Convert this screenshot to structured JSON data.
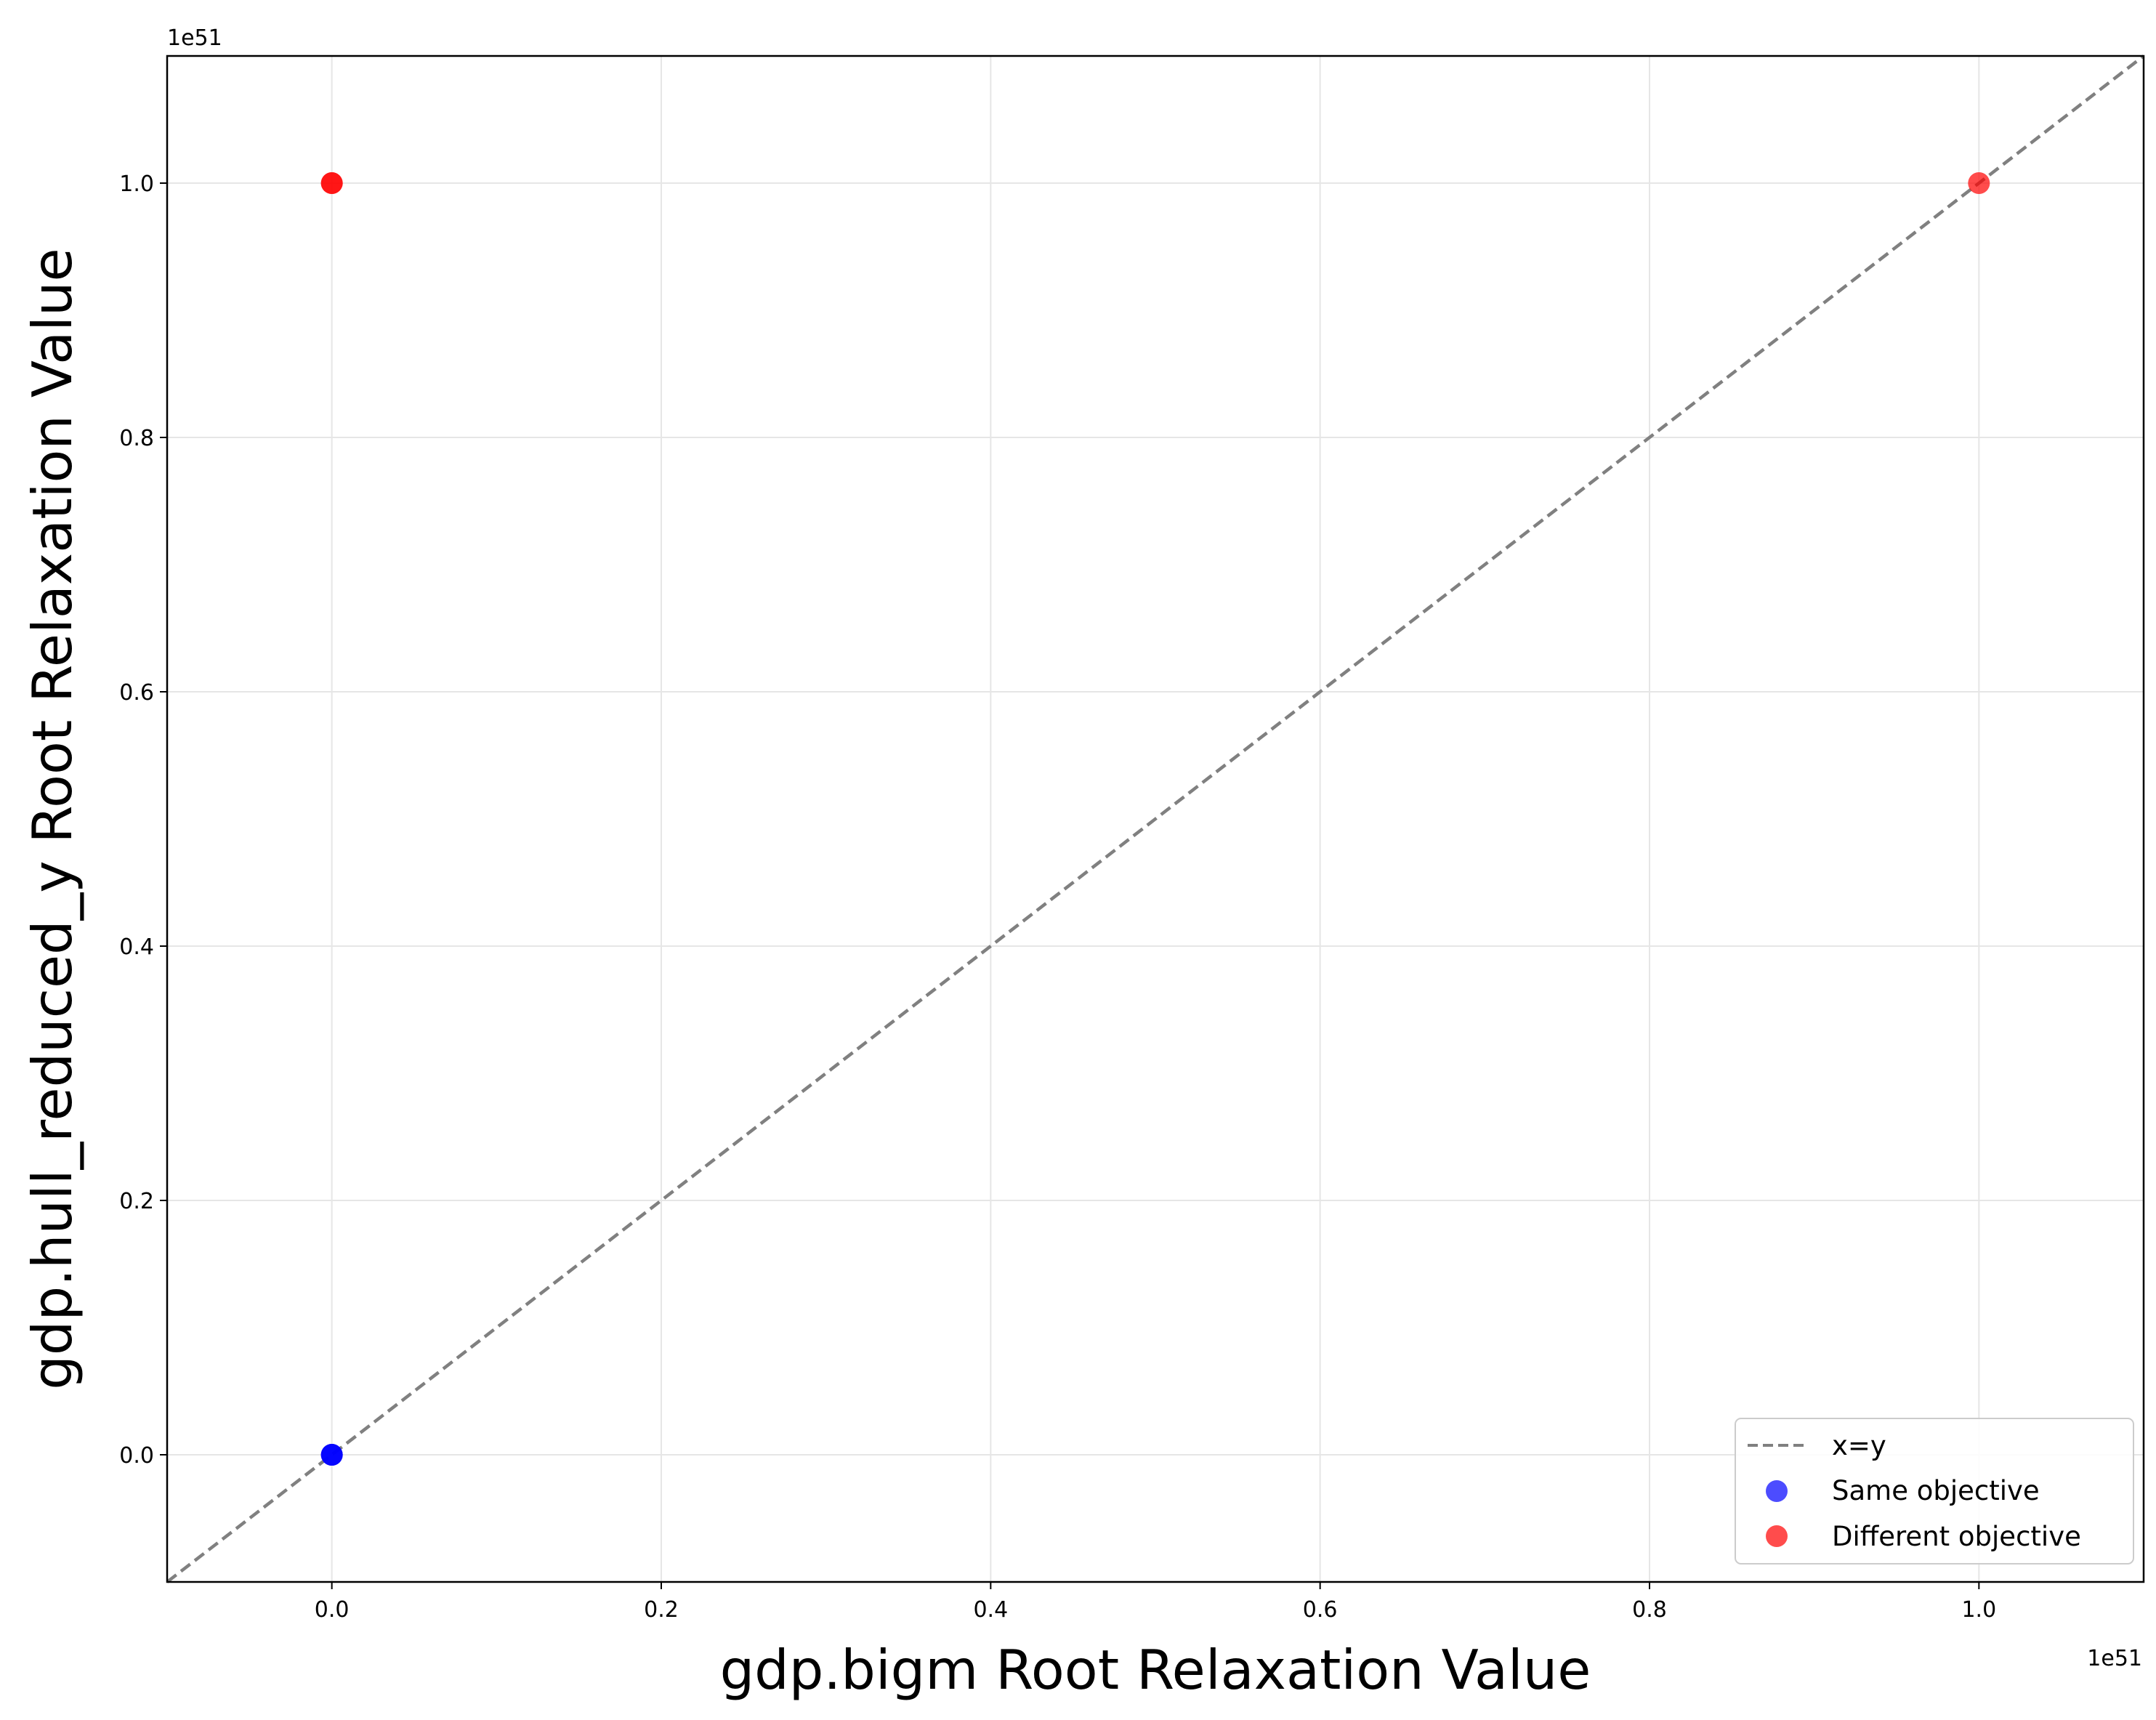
{
  "chart_data": {
    "type": "scatter",
    "xlabel": "gdp.bigm Root Relaxation Value",
    "ylabel": "gdp.hull_reduced_y Root Relaxation Value",
    "x_offset_label": "1e51",
    "y_offset_label": "1e51",
    "xlim": [
      -0.1,
      1.1
    ],
    "ylim": [
      -0.1,
      1.1
    ],
    "x_ticks": [
      0.0,
      0.2,
      0.4,
      0.6,
      0.8,
      1.0
    ],
    "x_tick_labels": [
      "0.0",
      "0.2",
      "0.4",
      "0.6",
      "0.8",
      "1.0"
    ],
    "y_ticks": [
      0.0,
      0.2,
      0.4,
      0.6,
      0.8,
      1.0
    ],
    "y_tick_labels": [
      "0.0",
      "0.2",
      "0.4",
      "0.6",
      "0.8",
      "1.0"
    ],
    "grid": true,
    "legend_position": "bottom-right",
    "series": [
      {
        "name": "x=y",
        "kind": "line",
        "style": "dashed",
        "color": "#808080",
        "x": [
          -0.1,
          1.1
        ],
        "y": [
          -0.1,
          1.1
        ]
      },
      {
        "name": "Same objective",
        "kind": "scatter",
        "color": "#0000ff",
        "x": [
          0.0,
          0.0,
          0.0
        ],
        "y": [
          0.0,
          0.0,
          0.0
        ]
      },
      {
        "name": "Different objective",
        "kind": "scatter",
        "color": "#ff0000",
        "x": [
          0.0,
          0.0,
          1.0
        ],
        "y": [
          1.0,
          1.0,
          1.0
        ]
      }
    ]
  }
}
